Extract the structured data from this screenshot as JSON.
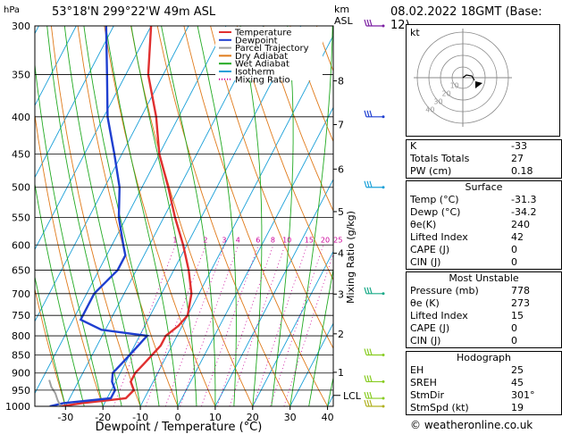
{
  "header": {
    "location": "53°18'N  299°22'W  49m  ASL",
    "datetime": "08.02.2022  18GMT  (Base: 12)"
  },
  "axes": {
    "y_left_unit": "hPa",
    "y_right_unit_top": "km",
    "y_right_unit_bottom": "ASL",
    "xlabel": "Dewpoint / Temperature (°C)",
    "mixing_label": "Mixing Ratio (g/kg)",
    "lcl_label": "LCL",
    "pressure_ticks": [
      300,
      350,
      400,
      450,
      500,
      550,
      600,
      650,
      700,
      750,
      800,
      850,
      900,
      950,
      1000
    ],
    "km_ticks": [
      {
        "km": "8",
        "p": 357
      },
      {
        "km": "7",
        "p": 410
      },
      {
        "km": "6",
        "p": 472
      },
      {
        "km": "5",
        "p": 540
      },
      {
        "km": "4",
        "p": 616
      },
      {
        "km": "3",
        "p": 701
      },
      {
        "km": "2",
        "p": 795
      },
      {
        "km": "1",
        "p": 898
      }
    ],
    "temp_ticks": [
      -30,
      -20,
      -10,
      0,
      10,
      20,
      30,
      40
    ],
    "mixing_ratios": [
      "1",
      "2",
      "3",
      "4",
      "6",
      "8",
      "10",
      "15",
      "20",
      "25"
    ]
  },
  "legend": [
    {
      "label": "Temperature",
      "color": "#e03030"
    },
    {
      "label": "Dewpoint",
      "color": "#1f3fd0"
    },
    {
      "label": "Parcel Trajectory",
      "color": "#a0a0a0"
    },
    {
      "label": "Dry Adiabat",
      "color": "#e07a1a"
    },
    {
      "label": "Wet Adiabat",
      "color": "#22aa22"
    },
    {
      "label": "Isotherm",
      "color": "#1aa0d8"
    },
    {
      "label": "Mixing Ratio",
      "color": "#cc0099"
    }
  ],
  "chart_data": {
    "type": "line",
    "x_unit": "°C",
    "y_unit": "hPa",
    "xlim": [
      -35,
      40
    ],
    "ylim": [
      1000,
      300
    ],
    "series": [
      {
        "name": "Temperature",
        "color": "#e03030",
        "points": [
          [
            1000,
            -31.3
          ],
          [
            990,
            -26
          ],
          [
            975,
            -15
          ],
          [
            950,
            -14
          ],
          [
            925,
            -16
          ],
          [
            900,
            -16
          ],
          [
            875,
            -15
          ],
          [
            850,
            -14
          ],
          [
            825,
            -13
          ],
          [
            800,
            -13
          ],
          [
            775,
            -11
          ],
          [
            750,
            -10
          ],
          [
            700,
            -12
          ],
          [
            650,
            -16
          ],
          [
            600,
            -21
          ],
          [
            550,
            -27
          ],
          [
            500,
            -33
          ],
          [
            450,
            -40
          ],
          [
            400,
            -46
          ],
          [
            350,
            -54
          ],
          [
            300,
            -60
          ]
        ]
      },
      {
        "name": "Dewpoint",
        "color": "#1f3fd0",
        "points": [
          [
            1000,
            -34.2
          ],
          [
            990,
            -31
          ],
          [
            975,
            -19
          ],
          [
            950,
            -19
          ],
          [
            925,
            -21
          ],
          [
            900,
            -22
          ],
          [
            875,
            -21
          ],
          [
            850,
            -20
          ],
          [
            825,
            -19
          ],
          [
            800,
            -18
          ],
          [
            785,
            -31
          ],
          [
            760,
            -38
          ],
          [
            700,
            -38
          ],
          [
            650,
            -35
          ],
          [
            620,
            -35
          ],
          [
            600,
            -37
          ],
          [
            550,
            -42
          ],
          [
            500,
            -46
          ],
          [
            450,
            -52
          ],
          [
            400,
            -59
          ],
          [
            350,
            -65
          ],
          [
            300,
            -72
          ]
        ]
      },
      {
        "name": "Parcel Trajectory",
        "color": "#a0a0a0",
        "points": [
          [
            1000,
            -31.3
          ],
          [
            980,
            -33
          ],
          [
            960,
            -34.5
          ],
          [
            940,
            -36.5
          ],
          [
            920,
            -38
          ]
        ]
      }
    ]
  },
  "hodograph": {
    "label": "kt",
    "ring_labels": [
      "10",
      "20",
      "30",
      "40"
    ]
  },
  "indices": {
    "basic": [
      {
        "k": "K",
        "v": "-33"
      },
      {
        "k": "Totals Totals",
        "v": "27"
      },
      {
        "k": "PW (cm)",
        "v": "0.18"
      }
    ],
    "surface_title": "Surface",
    "surface": [
      {
        "k": "Temp (°C)",
        "v": "-31.3"
      },
      {
        "k": "Dewp (°C)",
        "v": "-34.2"
      },
      {
        "k": "θe(K)",
        "v": "240"
      },
      {
        "k": "Lifted Index",
        "v": "42"
      },
      {
        "k": "CAPE (J)",
        "v": "0"
      },
      {
        "k": "CIN (J)",
        "v": "0"
      }
    ],
    "unstable_title": "Most Unstable",
    "unstable": [
      {
        "k": "Pressure (mb)",
        "v": "778"
      },
      {
        "k": "θe (K)",
        "v": "273"
      },
      {
        "k": "Lifted Index",
        "v": "15"
      },
      {
        "k": "CAPE (J)",
        "v": "0"
      },
      {
        "k": "CIN (J)",
        "v": "0"
      }
    ],
    "hodo_title": "Hodograph",
    "hodo": [
      {
        "k": "EH",
        "v": "25"
      },
      {
        "k": "SREH",
        "v": "45"
      },
      {
        "k": "StmDir",
        "v": "301°"
      },
      {
        "k": "StmSpd (kt)",
        "v": "19"
      }
    ]
  },
  "credit": "© weatheronline.co.uk"
}
